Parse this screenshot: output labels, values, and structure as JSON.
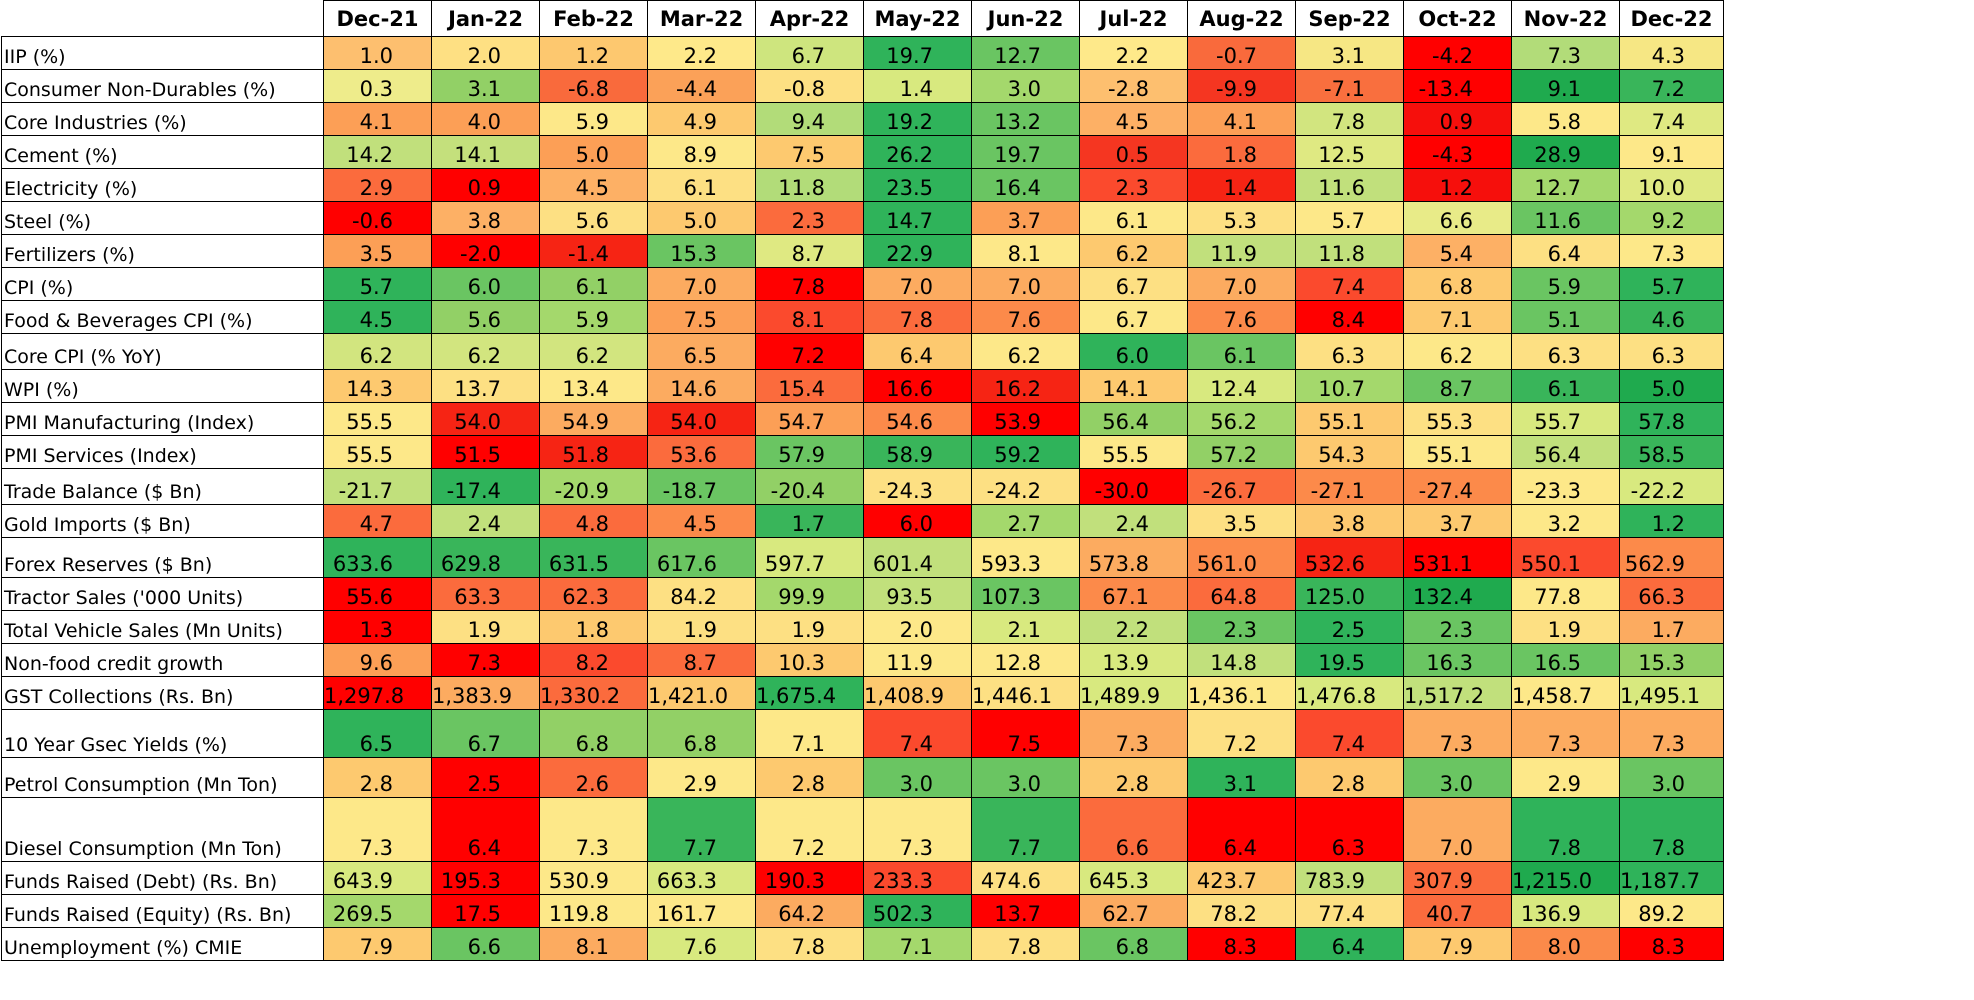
{
  "chart_data": {
    "type": "heatmap",
    "columns": [
      "Dec-21",
      "Jan-22",
      "Feb-22",
      "Mar-22",
      "Apr-22",
      "May-22",
      "Jun-22",
      "Jul-22",
      "Aug-22",
      "Sep-22",
      "Oct-22",
      "Nov-22",
      "Dec-22"
    ],
    "color_scale": [
      "#f8696b",
      "#ffeb84",
      "#63be7b"
    ],
    "rows": [
      {
        "label": "IIP (%)",
        "values": [
          "1.0",
          "2.0",
          "1.2",
          "2.2",
          "6.7",
          "19.7",
          "12.7",
          "2.2",
          "-0.7",
          "3.1",
          "-4.2",
          "7.3",
          "4.3"
        ],
        "colors": [
          "#fdbf6f",
          "#fee083",
          "#fdc86f",
          "#fee98a",
          "#cee57e",
          "#2fb35a",
          "#6ac562",
          "#fee98a",
          "#f96a3c",
          "#f6e784",
          "#ff0000",
          "#b2dc79",
          "#f6e784"
        ]
      },
      {
        "label": "Consumer Non-Durables (%)",
        "values": [
          "0.3",
          "3.1",
          "-6.8",
          "-4.4",
          "-0.8",
          "1.4",
          "3.0",
          "-2.8",
          "-9.9",
          "-7.1",
          "-13.4",
          "9.1",
          "7.2"
        ],
        "colors": [
          "#eeec8b",
          "#92d066",
          "#f96a3c",
          "#fba158",
          "#fde083",
          "#d8e97f",
          "#a4d86c",
          "#fdbf6f",
          "#f53621",
          "#f96f3e",
          "#ff0000",
          "#1faa4e",
          "#39b55a"
        ]
      },
      {
        "label": "Core Industries (%)",
        "values": [
          "4.1",
          "4.0",
          "5.9",
          "4.9",
          "9.4",
          "19.2",
          "13.2",
          "4.5",
          "4.1",
          "7.8",
          "0.9",
          "5.8",
          "7.4"
        ],
        "colors": [
          "#fc9f56",
          "#fc9f56",
          "#fde889",
          "#fdc96f",
          "#b2dc79",
          "#2fb35a",
          "#6ac562",
          "#fdb065",
          "#fc9f56",
          "#d2e57f",
          "#f60f0c",
          "#fde889",
          "#dfe982"
        ]
      },
      {
        "label": "Cement (%)",
        "values": [
          "14.2",
          "14.1",
          "5.0",
          "8.9",
          "7.5",
          "26.2",
          "19.7",
          "0.5",
          "1.8",
          "12.5",
          "-4.3",
          "28.9",
          "9.1"
        ],
        "colors": [
          "#c1e07c",
          "#c4e07c",
          "#fc9f56",
          "#fde889",
          "#fdc96f",
          "#2fb35a",
          "#6ac562",
          "#f53621",
          "#fb6b3d",
          "#dfe982",
          "#ff0000",
          "#1faa4e",
          "#fde889"
        ]
      },
      {
        "label": "Electricity (%)",
        "values": [
          "2.9",
          "0.9",
          "4.5",
          "6.1",
          "11.8",
          "23.5",
          "16.4",
          "2.3",
          "1.4",
          "11.6",
          "1.2",
          "12.7",
          "10.0"
        ],
        "colors": [
          "#fb6b3d",
          "#ff0000",
          "#fdb065",
          "#fde083",
          "#b2dc79",
          "#2fb35a",
          "#6ac562",
          "#fb4a2d",
          "#f62414",
          "#c1e07c",
          "#f60f0c",
          "#a4d86c",
          "#dfe982"
        ]
      },
      {
        "label": "Steel (%)",
        "values": [
          "-0.6",
          "3.8",
          "5.6",
          "5.0",
          "2.3",
          "14.7",
          "3.7",
          "6.1",
          "5.3",
          "5.7",
          "6.6",
          "11.6",
          "9.2"
        ],
        "colors": [
          "#ff0000",
          "#fdb065",
          "#fde083",
          "#fdc96f",
          "#fb6b3d",
          "#2fb35a",
          "#fc9f56",
          "#fde889",
          "#fde083",
          "#fde889",
          "#e8eb88",
          "#6ac562",
          "#a4d86c"
        ]
      },
      {
        "label": "Fertilizers (%)",
        "values": [
          "3.5",
          "-2.0",
          "-1.4",
          "15.3",
          "8.7",
          "22.9",
          "8.1",
          "6.2",
          "11.9",
          "11.8",
          "5.4",
          "6.4",
          "7.3"
        ],
        "colors": [
          "#fc9f56",
          "#ff0000",
          "#f62414",
          "#6ac562",
          "#dfe982",
          "#2fb35a",
          "#fde889",
          "#fdc96f",
          "#c1e07c",
          "#c1e07c",
          "#fdb065",
          "#fde083",
          "#fde889"
        ]
      },
      {
        "label": "CPI (%)",
        "values": [
          "5.7",
          "6.0",
          "6.1",
          "7.0",
          "7.8",
          "7.0",
          "7.0",
          "6.7",
          "7.0",
          "7.4",
          "6.8",
          "5.9",
          "5.7"
        ],
        "colors": [
          "#2fb35a",
          "#6ac562",
          "#92d066",
          "#fcab60",
          "#ff0000",
          "#fcab60",
          "#fcab60",
          "#fde083",
          "#fcab60",
          "#fb4a2d",
          "#fdc96f",
          "#6ac562",
          "#2fb35a"
        ]
      },
      {
        "label": "Food & Beverages CPI (%)",
        "values": [
          "4.5",
          "5.6",
          "5.9",
          "7.5",
          "8.1",
          "7.8",
          "7.6",
          "6.7",
          "7.6",
          "8.4",
          "7.1",
          "5.1",
          "4.6"
        ],
        "colors": [
          "#2fb35a",
          "#92d066",
          "#a4d86c",
          "#fc9f56",
          "#fb4a2d",
          "#fb6b3d",
          "#fc8a4a",
          "#fde889",
          "#fc8a4a",
          "#ff0000",
          "#fdc96f",
          "#6ac562",
          "#39b55a"
        ]
      },
      {
        "label": "Core CPI (% YoY)",
        "values": [
          "6.2",
          "6.2",
          "6.2",
          "6.5",
          "7.2",
          "6.4",
          "6.2",
          "6.0",
          "6.1",
          "6.3",
          "6.2",
          "6.3",
          "6.3"
        ],
        "colors": [
          "#d2e57f",
          "#d2e57f",
          "#d2e57f",
          "#fcab60",
          "#ff0000",
          "#fdc96f",
          "#fde889",
          "#2fb35a",
          "#6ac562",
          "#fde083",
          "#fde889",
          "#fde083",
          "#fde083"
        ]
      },
      {
        "label": "WPI (%)",
        "values": [
          "14.3",
          "13.7",
          "13.4",
          "14.6",
          "15.4",
          "16.6",
          "16.2",
          "14.1",
          "12.4",
          "10.7",
          "8.7",
          "6.1",
          "5.0"
        ],
        "colors": [
          "#fdc96f",
          "#fde083",
          "#fde889",
          "#fcab60",
          "#fb6b3d",
          "#ff0000",
          "#f62414",
          "#fdc96f",
          "#d8e97f",
          "#a4d86c",
          "#6ac562",
          "#39b55a",
          "#1faa4e"
        ]
      },
      {
        "label": "PMI Manufacturing (Index)",
        "values": [
          "55.5",
          "54.0",
          "54.9",
          "54.0",
          "54.7",
          "54.6",
          "53.9",
          "56.4",
          "56.2",
          "55.1",
          "55.3",
          "55.7",
          "57.8"
        ],
        "colors": [
          "#fde889",
          "#f62414",
          "#fcab60",
          "#f62414",
          "#fc9f56",
          "#fc8a4a",
          "#ff0000",
          "#92d066",
          "#a4d86c",
          "#fdc96f",
          "#fde083",
          "#d8e97f",
          "#2fb35a"
        ]
      },
      {
        "label": "PMI Services (Index)",
        "values": [
          "55.5",
          "51.5",
          "51.8",
          "53.6",
          "57.9",
          "58.9",
          "59.2",
          "55.5",
          "57.2",
          "54.3",
          "55.1",
          "56.4",
          "58.5"
        ],
        "colors": [
          "#fde889",
          "#ff0000",
          "#f62414",
          "#fb6b3d",
          "#6ac562",
          "#39b55a",
          "#2fb35a",
          "#fde889",
          "#92d066",
          "#fdc96f",
          "#fde889",
          "#c1e07c",
          "#39b55a"
        ]
      },
      {
        "label": "Trade Balance ($ Bn)",
        "values": [
          "-21.7",
          "-17.4",
          "-20.9",
          "-18.7",
          "-20.4",
          "-24.3",
          "-24.2",
          "-30.0",
          "-26.7",
          "-27.1",
          "-27.4",
          "-23.3",
          "-22.2"
        ],
        "colors": [
          "#c1e07c",
          "#2fb35a",
          "#a4d86c",
          "#6ac562",
          "#92d066",
          "#fde083",
          "#fde083",
          "#ff0000",
          "#fb6b3d",
          "#fc8a4a",
          "#fc8a4a",
          "#fde889",
          "#d8e97f"
        ]
      },
      {
        "label": "Gold Imports ($ Bn)",
        "values": [
          "4.7",
          "2.4",
          "4.8",
          "4.5",
          "1.7",
          "6.0",
          "2.7",
          "2.4",
          "3.5",
          "3.8",
          "3.7",
          "3.2",
          "1.2"
        ],
        "colors": [
          "#fb6b3d",
          "#c1e07c",
          "#fb6b3d",
          "#fc8a4a",
          "#39b55a",
          "#ff0000",
          "#a4d86c",
          "#c1e07c",
          "#fde083",
          "#fdc96f",
          "#fdc96f",
          "#fde889",
          "#2fb35a"
        ]
      },
      {
        "label": "Forex Reserves ($ Bn)",
        "values": [
          "633.6",
          "629.8",
          "631.5",
          "617.6",
          "597.7",
          "601.4",
          "593.3",
          "573.8",
          "561.0",
          "532.6",
          "531.1",
          "550.1",
          "562.9"
        ],
        "colors": [
          "#2fb35a",
          "#39b55a",
          "#39b55a",
          "#6ac562",
          "#d8e97f",
          "#c1e07c",
          "#fde889",
          "#fcab60",
          "#fc8a4a",
          "#f62414",
          "#ff0000",
          "#fb4a2d",
          "#fc8a4a"
        ]
      },
      {
        "label": "Tractor Sales ('000 Units)",
        "values": [
          "55.6",
          "63.3",
          "62.3",
          "84.2",
          "99.9",
          "93.5",
          "107.3",
          "67.1",
          "64.8",
          "125.0",
          "132.4",
          "77.8",
          "66.3"
        ],
        "colors": [
          "#ff0000",
          "#fb6b3d",
          "#fb6b3d",
          "#fde083",
          "#a4d86c",
          "#c1e07c",
          "#6ac562",
          "#fc8a4a",
          "#fb6b3d",
          "#39b55a",
          "#1faa4e",
          "#fde889",
          "#fb6b3d"
        ]
      },
      {
        "label": "Total Vehicle Sales (Mn Units)",
        "values": [
          "1.3",
          "1.9",
          "1.8",
          "1.9",
          "1.9",
          "2.0",
          "2.1",
          "2.2",
          "2.3",
          "2.5",
          "2.3",
          "1.9",
          "1.7"
        ],
        "colors": [
          "#ff0000",
          "#fde083",
          "#fdc96f",
          "#fde083",
          "#fde083",
          "#fde889",
          "#d8e97f",
          "#c1e07c",
          "#6ac562",
          "#2fb35a",
          "#6ac562",
          "#fde083",
          "#fcab60"
        ]
      },
      {
        "label": "Non-food credit growth",
        "values": [
          "9.6",
          "7.3",
          "8.2",
          "8.7",
          "10.3",
          "11.9",
          "12.8",
          "13.9",
          "14.8",
          "19.5",
          "16.3",
          "16.5",
          "15.3"
        ],
        "colors": [
          "#fc9f56",
          "#ff0000",
          "#fb4a2d",
          "#fb6b3d",
          "#fdc96f",
          "#fde889",
          "#fde889",
          "#d8e97f",
          "#c1e07c",
          "#2fb35a",
          "#6ac562",
          "#6ac562",
          "#92d066"
        ]
      },
      {
        "label": "GST Collections (Rs. Bn)",
        "values": [
          "1,297.8",
          "1,383.9",
          "1,330.2",
          "1,421.0",
          "1,675.4",
          "1,408.9",
          "1,446.1",
          "1,489.9",
          "1,436.1",
          "1,476.8",
          "1,517.2",
          "1,458.7",
          "1,495.1"
        ],
        "colors": [
          "#ff0000",
          "#fcab60",
          "#fb6b3d",
          "#fdc96f",
          "#2fb35a",
          "#fdc96f",
          "#fde083",
          "#d8e97f",
          "#fde889",
          "#d8e97f",
          "#c1e07c",
          "#fde889",
          "#d8e97f"
        ]
      },
      {
        "label": "10 Year Gsec Yields (%)",
        "values": [
          "6.5",
          "6.7",
          "6.8",
          "6.8",
          "7.1",
          "7.4",
          "7.5",
          "7.3",
          "7.2",
          "7.4",
          "7.3",
          "7.3",
          "7.3"
        ],
        "colors": [
          "#2fb35a",
          "#6ac562",
          "#92d066",
          "#92d066",
          "#fde889",
          "#fb4a2d",
          "#ff0000",
          "#fcab60",
          "#fde083",
          "#fb4a2d",
          "#fcab60",
          "#fcab60",
          "#fcab60"
        ]
      },
      {
        "label": "Petrol Consumption (Mn Ton)",
        "values": [
          "2.8",
          "2.5",
          "2.6",
          "2.9",
          "2.8",
          "3.0",
          "3.0",
          "2.8",
          "3.1",
          "2.8",
          "3.0",
          "2.9",
          "3.0"
        ],
        "colors": [
          "#fdc96f",
          "#ff0000",
          "#fb6b3d",
          "#fde889",
          "#fdc96f",
          "#6ac562",
          "#6ac562",
          "#fdc96f",
          "#2fb35a",
          "#fdc96f",
          "#6ac562",
          "#fde889",
          "#6ac562"
        ]
      },
      {
        "label": "Diesel Consumption (Mn Ton)",
        "values": [
          "7.3",
          "6.4",
          "7.3",
          "7.7",
          "7.2",
          "7.3",
          "7.7",
          "6.6",
          "6.4",
          "6.3",
          "7.0",
          "7.8",
          "7.8"
        ],
        "colors": [
          "#fde889",
          "#ff0000",
          "#fde889",
          "#39b55a",
          "#fde889",
          "#fde889",
          "#39b55a",
          "#fb6b3d",
          "#ff0000",
          "#ff0000",
          "#fcab60",
          "#2fb35a",
          "#2fb35a"
        ]
      },
      {
        "label": "Funds Raised (Debt) (Rs. Bn)",
        "values": [
          "643.9",
          "195.3",
          "530.9",
          "663.3",
          "190.3",
          "233.3",
          "474.6",
          "645.3",
          "423.7",
          "783.9",
          "307.9",
          "1,215.0",
          "1,187.7"
        ],
        "colors": [
          "#d8e97f",
          "#ff0000",
          "#fde889",
          "#d8e97f",
          "#ff0000",
          "#fb4a2d",
          "#fde083",
          "#d8e97f",
          "#fdc96f",
          "#c1e07c",
          "#fb6b3d",
          "#1faa4e",
          "#2fb35a"
        ]
      },
      {
        "label": "Funds Raised (Equity) (Rs. Bn)",
        "values": [
          "269.5",
          "17.5",
          "119.8",
          "161.7",
          "64.2",
          "502.3",
          "13.7",
          "62.7",
          "78.2",
          "77.4",
          "40.7",
          "136.9",
          "89.2"
        ],
        "colors": [
          "#a4d86c",
          "#ff0000",
          "#fde889",
          "#fde889",
          "#fcab60",
          "#2fb35a",
          "#ff0000",
          "#fcab60",
          "#fde083",
          "#fde083",
          "#fb6b3d",
          "#d8e97f",
          "#fde889"
        ]
      },
      {
        "label": "Unemployment (%) CMIE",
        "values": [
          "7.9",
          "6.6",
          "8.1",
          "7.6",
          "7.8",
          "7.1",
          "7.8",
          "6.8",
          "8.3",
          "6.4",
          "7.9",
          "8.0",
          "8.3"
        ],
        "colors": [
          "#fdc96f",
          "#6ac562",
          "#fcab60",
          "#d8e97f",
          "#fde083",
          "#a4d86c",
          "#fde083",
          "#6ac562",
          "#ff0000",
          "#2fb35a",
          "#fdc96f",
          "#fb8a4a",
          "#ff0000"
        ]
      }
    ]
  }
}
